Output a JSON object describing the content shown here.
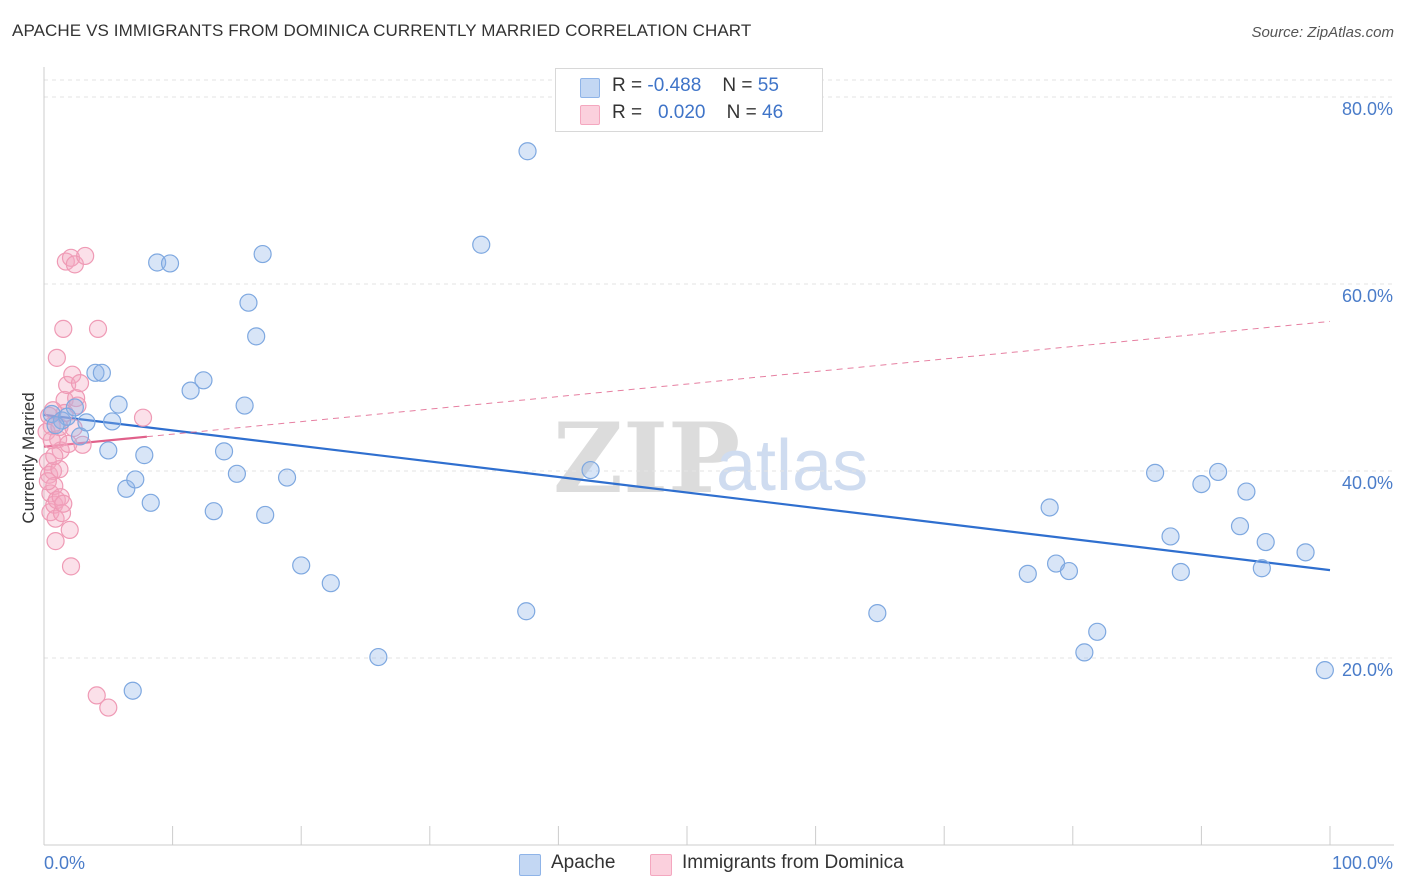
{
  "title": "APACHE VS IMMIGRANTS FROM DOMINICA CURRENTLY MARRIED CORRELATION CHART",
  "source": "Source: ZipAtlas.com",
  "watermark": {
    "zip": "ZIP",
    "atlas": "atlas"
  },
  "legend": {
    "apache": {
      "r_label": "R =",
      "r_value": "-0.488",
      "n_label": "N =",
      "n_value": "55"
    },
    "dominica": {
      "r_label": "R =",
      "r_value": "0.020",
      "n_label": "N =",
      "n_value": "46"
    }
  },
  "bottom_legend": {
    "apache": "Apache",
    "dominica": "Immigrants from Dominica"
  },
  "chart_data": {
    "type": "scatter",
    "title": "APACHE VS IMMIGRANTS FROM DOMINICA CURRENTLY MARRIED CORRELATION CHART",
    "xlabel": "",
    "ylabel": "Currently Married",
    "xlim": [
      0,
      100
    ],
    "ylim": [
      0,
      80
    ],
    "x_tick_labels": [
      "0.0%",
      "100.0%"
    ],
    "y_ticks": [
      20,
      40,
      60,
      80
    ],
    "y_tick_labels": [
      "20.0%",
      "40.0%",
      "60.0%",
      "80.0%"
    ],
    "grid": "horizontal dashed",
    "legend_placement": "top-center",
    "colors": {
      "apache": "#8fb4e8",
      "apache_line": "#2f6fcf",
      "dominica": "#f4a7bf",
      "dominica_line": "#e0608a"
    },
    "series": [
      {
        "name": "Apache",
        "trend": {
          "x": [
            0,
            100
          ],
          "y": [
            46.0,
            29.4
          ],
          "style": "solid"
        },
        "points": [
          [
            0.6,
            46.1
          ],
          [
            1.4,
            45.4
          ],
          [
            1.8,
            45.8
          ],
          [
            2.4,
            46.8
          ],
          [
            2.8,
            43.7
          ],
          [
            3.3,
            45.2
          ],
          [
            4.0,
            50.5
          ],
          [
            4.5,
            50.5
          ],
          [
            5.0,
            42.2
          ],
          [
            5.3,
            45.3
          ],
          [
            5.8,
            47.1
          ],
          [
            6.4,
            38.1
          ],
          [
            7.1,
            39.1
          ],
          [
            7.8,
            41.7
          ],
          [
            8.3,
            36.6
          ],
          [
            8.8,
            62.3
          ],
          [
            9.8,
            62.2
          ],
          [
            11.4,
            48.6
          ],
          [
            12.4,
            49.7
          ],
          [
            13.2,
            35.7
          ],
          [
            14.0,
            42.1
          ],
          [
            15.0,
            39.7
          ],
          [
            15.6,
            47.0
          ],
          [
            15.9,
            58.0
          ],
          [
            16.5,
            54.4
          ],
          [
            17.0,
            63.2
          ],
          [
            17.2,
            35.3
          ],
          [
            18.9,
            39.3
          ],
          [
            20.0,
            29.9
          ],
          [
            22.3,
            28.0
          ],
          [
            26.0,
            20.1
          ],
          [
            34.0,
            64.2
          ],
          [
            37.5,
            25.0
          ],
          [
            37.6,
            74.2
          ],
          [
            42.5,
            40.1
          ],
          [
            6.9,
            16.5
          ],
          [
            64.8,
            24.8
          ],
          [
            76.5,
            29.0
          ],
          [
            78.2,
            36.1
          ],
          [
            78.7,
            30.1
          ],
          [
            79.7,
            29.3
          ],
          [
            80.9,
            20.6
          ],
          [
            81.9,
            22.8
          ],
          [
            86.4,
            39.8
          ],
          [
            87.6,
            33.0
          ],
          [
            88.4,
            29.2
          ],
          [
            90.0,
            38.6
          ],
          [
            91.3,
            39.9
          ],
          [
            93.0,
            34.1
          ],
          [
            93.5,
            37.8
          ],
          [
            94.7,
            29.6
          ],
          [
            95.0,
            32.4
          ],
          [
            98.1,
            31.3
          ],
          [
            99.6,
            18.7
          ],
          [
            0.9,
            44.9
          ]
        ]
      },
      {
        "name": "Immigrants from Dominica",
        "trend": {
          "x": [
            0,
            100
          ],
          "y": [
            42.6,
            56.0
          ],
          "style": "dashed",
          "solid_to": 8.0
        },
        "points": [
          [
            0.2,
            44.2
          ],
          [
            0.3,
            41.0
          ],
          [
            0.4,
            39.6
          ],
          [
            0.5,
            37.6
          ],
          [
            0.5,
            35.6
          ],
          [
            0.6,
            44.8
          ],
          [
            0.7,
            40.0
          ],
          [
            0.8,
            38.4
          ],
          [
            0.8,
            36.4
          ],
          [
            0.9,
            34.9
          ],
          [
            1.0,
            36.9
          ],
          [
            1.0,
            52.1
          ],
          [
            1.1,
            43.4
          ],
          [
            1.2,
            44.7
          ],
          [
            1.3,
            42.2
          ],
          [
            1.3,
            37.2
          ],
          [
            1.4,
            35.5
          ],
          [
            1.5,
            55.2
          ],
          [
            1.6,
            47.6
          ],
          [
            1.6,
            46.2
          ],
          [
            1.7,
            62.4
          ],
          [
            1.8,
            49.2
          ],
          [
            1.9,
            42.9
          ],
          [
            2.0,
            33.7
          ],
          [
            2.1,
            62.8
          ],
          [
            2.1,
            29.8
          ],
          [
            2.2,
            50.3
          ],
          [
            2.3,
            44.6
          ],
          [
            2.4,
            62.1
          ],
          [
            2.5,
            47.8
          ],
          [
            2.6,
            47.0
          ],
          [
            2.8,
            49.4
          ],
          [
            3.0,
            42.8
          ],
          [
            3.2,
            63.0
          ],
          [
            4.1,
            16.0
          ],
          [
            4.2,
            55.2
          ],
          [
            5.0,
            14.7
          ],
          [
            7.7,
            45.7
          ],
          [
            0.6,
            43.3
          ],
          [
            0.9,
            32.5
          ],
          [
            1.2,
            40.2
          ],
          [
            0.4,
            45.9
          ],
          [
            0.7,
            46.5
          ],
          [
            1.5,
            36.5
          ],
          [
            0.3,
            38.9
          ],
          [
            0.8,
            41.6
          ]
        ]
      }
    ]
  }
}
